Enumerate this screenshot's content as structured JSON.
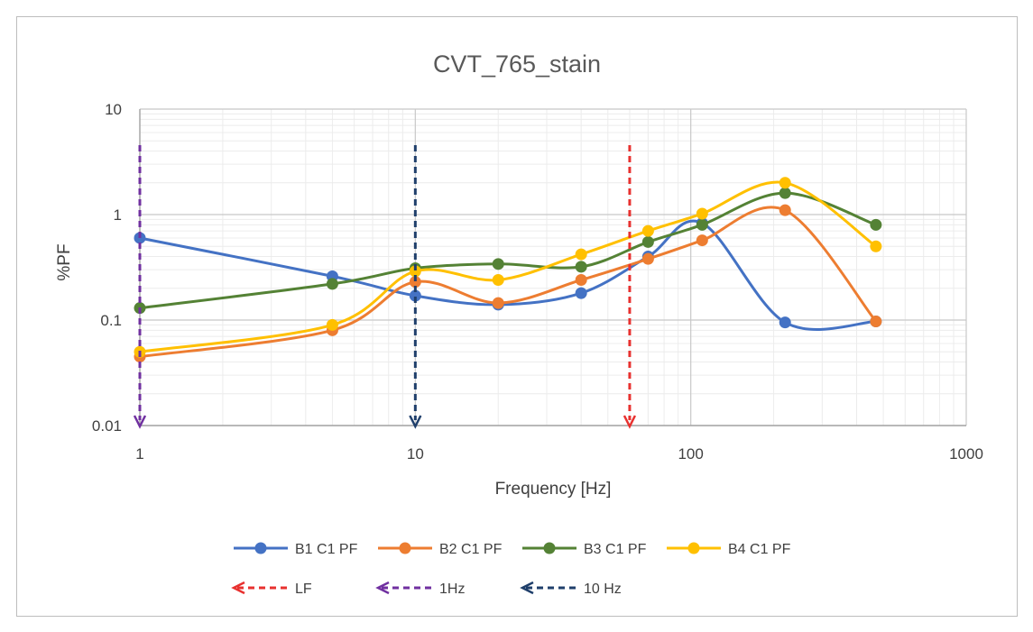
{
  "chart_data": {
    "type": "line",
    "title": "CVT_765_stain",
    "xlabel": "Frequency [Hz]",
    "ylabel": "%PF",
    "xscale": "log",
    "yscale": "log",
    "xlim": [
      1,
      1000
    ],
    "ylim": [
      0.01,
      10
    ],
    "x_ticks": [
      1,
      10,
      100,
      1000
    ],
    "x_tick_labels": [
      "1",
      "10",
      "100",
      "1000"
    ],
    "y_ticks": [
      0.01,
      0.1,
      1,
      10
    ],
    "y_tick_labels": [
      "0.01",
      "0.1",
      "1",
      "10"
    ],
    "grid": true,
    "legend_position": "bottom",
    "series": [
      {
        "name": "B1 C1 PF",
        "color": "#4472c4",
        "x": [
          1,
          5,
          10,
          20,
          40,
          70,
          110,
          220,
          470
        ],
        "y": [
          0.6,
          0.26,
          0.17,
          0.14,
          0.18,
          0.4,
          0.83,
          0.095,
          0.097
        ]
      },
      {
        "name": "B2 C1 PF",
        "color": "#ed7d31",
        "x": [
          1,
          5,
          10,
          20,
          40,
          70,
          110,
          220,
          470
        ],
        "y": [
          0.045,
          0.08,
          0.23,
          0.145,
          0.24,
          0.38,
          0.57,
          1.1,
          0.097
        ]
      },
      {
        "name": "B3 C1 PF",
        "color": "#548235",
        "x": [
          1,
          5,
          10,
          20,
          40,
          70,
          110,
          220,
          470
        ],
        "y": [
          0.13,
          0.22,
          0.31,
          0.34,
          0.32,
          0.55,
          0.8,
          1.6,
          0.8
        ]
      },
      {
        "name": "B4 C1 PF",
        "color": "#ffc000",
        "x": [
          1,
          5,
          10,
          20,
          40,
          70,
          110,
          220,
          470
        ],
        "y": [
          0.05,
          0.09,
          0.29,
          0.24,
          0.42,
          0.7,
          1.02,
          2.0,
          0.5
        ]
      }
    ],
    "markers": [
      {
        "name": "LF",
        "color": "#e8312f",
        "x": 60
      },
      {
        "name": "1Hz",
        "color": "#7030a0",
        "x": 1
      },
      {
        "name": "10 Hz",
        "color": "#1f3f6b",
        "x": 10
      }
    ]
  }
}
